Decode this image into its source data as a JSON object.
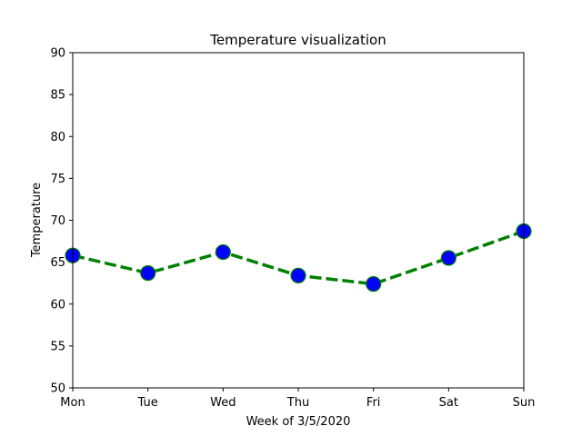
{
  "chart_data": {
    "type": "line",
    "title": "Temperature visualization",
    "xlabel": "Week of 3/5/2020",
    "ylabel": "Temperature",
    "categories": [
      "Mon",
      "Tue",
      "Wed",
      "Thu",
      "Fri",
      "Sat",
      "Sun"
    ],
    "series": [
      {
        "values": [
          65.8,
          63.7,
          66.2,
          63.4,
          62.4,
          65.5,
          68.7
        ]
      }
    ],
    "ylim": [
      50,
      90
    ],
    "yticks": [
      50,
      55,
      60,
      65,
      70,
      75,
      80,
      85,
      90
    ],
    "grid": false,
    "line_color": "#008000",
    "line_style": "dashed",
    "marker_fill": "#0000ff",
    "marker_edge": "#008000"
  }
}
